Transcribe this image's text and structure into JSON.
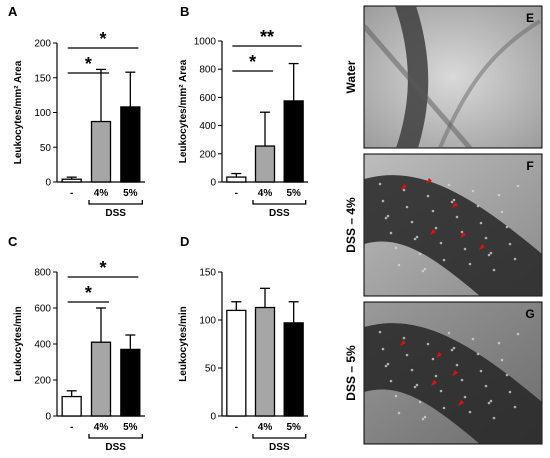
{
  "colors": {
    "control": "#ffffff",
    "dss4": "#a6a6a6",
    "dss5": "#000000",
    "arrow": "#e01010"
  },
  "chart_data": [
    {
      "id": "A",
      "type": "bar",
      "ylabel": "Leukocytes/mm² Area",
      "categories": [
        "-",
        "4%",
        "5%"
      ],
      "group_label": "DSS",
      "values": [
        4,
        87,
        108
      ],
      "errors": [
        3,
        75,
        50
      ],
      "ylim": [
        0,
        200
      ],
      "yticks": [
        0,
        50,
        100,
        150,
        200
      ],
      "significance": [
        {
          "from": 0,
          "to": 1,
          "label": "*"
        },
        {
          "from": 0,
          "to": 2,
          "label": "*"
        }
      ]
    },
    {
      "id": "B",
      "type": "bar",
      "ylabel": "Leukocytes/mm² Area",
      "categories": [
        "-",
        "4%",
        "5%"
      ],
      "group_label": "DSS",
      "values": [
        35,
        255,
        575
      ],
      "errors": [
        25,
        240,
        265
      ],
      "ylim": [
        0,
        1000
      ],
      "yticks": [
        0,
        200,
        400,
        600,
        800,
        1000
      ],
      "significance": [
        {
          "from": 0,
          "to": 1,
          "label": "*"
        },
        {
          "from": 0,
          "to": 2,
          "label": "**"
        }
      ]
    },
    {
      "id": "C",
      "type": "bar",
      "ylabel": "Leukocytes/min",
      "categories": [
        "-",
        "4%",
        "5%"
      ],
      "group_label": "DSS",
      "values": [
        108,
        410,
        370
      ],
      "errors": [
        32,
        190,
        80
      ],
      "ylim": [
        0,
        800
      ],
      "yticks": [
        0,
        200,
        400,
        600,
        800
      ],
      "significance": [
        {
          "from": 0,
          "to": 1,
          "label": "*"
        },
        {
          "from": 0,
          "to": 2,
          "label": "*"
        }
      ]
    },
    {
      "id": "D",
      "type": "bar",
      "ylabel": "Leukocytes/min",
      "categories": [
        "-",
        "4%",
        "5%"
      ],
      "group_label": "DSS",
      "values": [
        110,
        113,
        97
      ],
      "errors": [
        9,
        20,
        22
      ],
      "ylim": [
        0,
        150
      ],
      "yticks": [
        0,
        50,
        100,
        150
      ],
      "significance": []
    }
  ],
  "images": [
    {
      "id": "E",
      "side_label": "Water",
      "arrows": 0
    },
    {
      "id": "F",
      "side_label": "DSS – 4%",
      "arrows": 6
    },
    {
      "id": "G",
      "side_label": "DSS – 5%",
      "arrows": 5
    }
  ]
}
